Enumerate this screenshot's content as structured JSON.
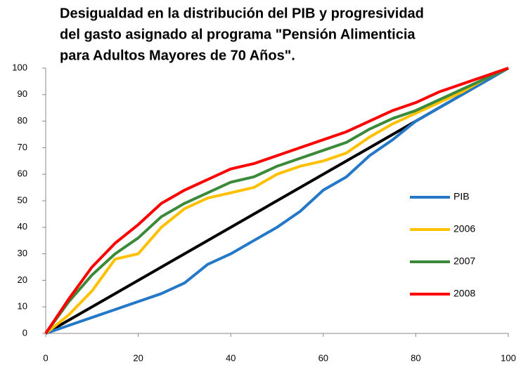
{
  "chart_data": {
    "type": "line",
    "title": [
      "Desigualdad en la distribución del PIB y progresividad",
      "del gasto asignado al programa \"Pensión Alimenticia",
      "para Adultos Mayores de 70 Años\"."
    ],
    "x": [
      0,
      5,
      10,
      15,
      20,
      25,
      30,
      35,
      40,
      45,
      50,
      55,
      60,
      65,
      70,
      75,
      80,
      85,
      90,
      95,
      100
    ],
    "series": [
      {
        "color": "#000000",
        "x": [
          0,
          100
        ],
        "values": [
          0,
          100
        ]
      },
      {
        "name": "PIB",
        "color": "#2478c8",
        "values": [
          0,
          3,
          6,
          9,
          12,
          15,
          19,
          26,
          30,
          35,
          40,
          46,
          54,
          59,
          67,
          73,
          80,
          85,
          90,
          95,
          100
        ]
      },
      {
        "name": "2006",
        "color": "#ffc000",
        "values": [
          0,
          7,
          16,
          28,
          30,
          40,
          47,
          51,
          53,
          55,
          60,
          63,
          65,
          68,
          74,
          79,
          83,
          87,
          91,
          96,
          100
        ]
      },
      {
        "name": "2007",
        "color": "#3a8a3a",
        "values": [
          0,
          12,
          22,
          30,
          36,
          44,
          49,
          53,
          57,
          59,
          63,
          66,
          69,
          72,
          77,
          81,
          84,
          88,
          92,
          96,
          100
        ]
      },
      {
        "name": "2008",
        "color": "#ff0000",
        "values": [
          0,
          13,
          25,
          34,
          41,
          49,
          54,
          58,
          62,
          64,
          67,
          70,
          73,
          76,
          80,
          84,
          87,
          91,
          94,
          97,
          100
        ]
      }
    ],
    "xlim": [
      0,
      100
    ],
    "xticks": [
      0,
      20,
      40,
      60,
      80,
      100
    ],
    "ylim": [
      0,
      100
    ],
    "yticks": [
      0,
      10,
      20,
      30,
      40,
      50,
      60,
      70,
      80,
      90,
      100
    ],
    "grid": false,
    "legend": "right"
  }
}
